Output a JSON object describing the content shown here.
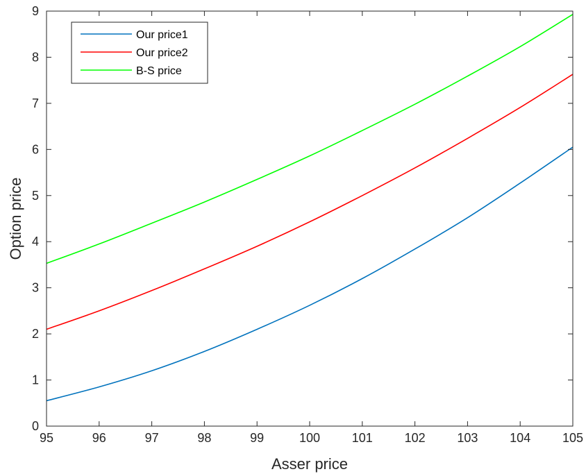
{
  "chart_data": {
    "type": "line",
    "title": "",
    "xlabel": "Asser price",
    "ylabel": "Option price",
    "xlim": [
      95,
      105
    ],
    "ylim": [
      0,
      9
    ],
    "xticks": [
      95,
      96,
      97,
      98,
      99,
      100,
      101,
      102,
      103,
      104,
      105
    ],
    "yticks": [
      0,
      1,
      2,
      3,
      4,
      5,
      6,
      7,
      8,
      9
    ],
    "grid": false,
    "legend_position": "top-left",
    "x": [
      95,
      96,
      97,
      98,
      99,
      100,
      101,
      102,
      103,
      104,
      105
    ],
    "series": [
      {
        "name": "Our price1",
        "color": "#0072BD",
        "values": [
          0.55,
          0.85,
          1.2,
          1.62,
          2.1,
          2.62,
          3.2,
          3.84,
          4.52,
          5.27,
          6.05
        ]
      },
      {
        "name": "Our price2",
        "color": "#FF0000",
        "values": [
          2.1,
          2.5,
          2.94,
          3.41,
          3.9,
          4.43,
          5.0,
          5.6,
          6.24,
          6.91,
          7.63
        ]
      },
      {
        "name": "B-S price",
        "color": "#00FF00",
        "values": [
          3.53,
          3.95,
          4.4,
          4.86,
          5.35,
          5.86,
          6.41,
          6.98,
          7.59,
          8.23,
          8.93
        ]
      }
    ]
  }
}
